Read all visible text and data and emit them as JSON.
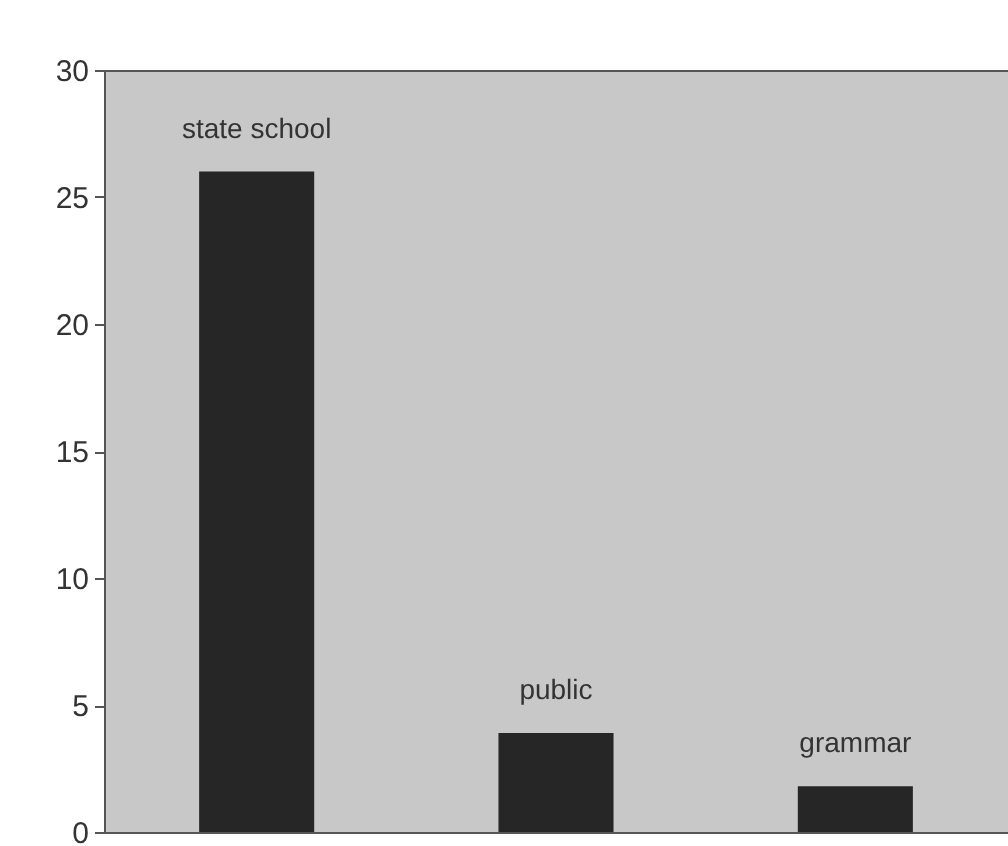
{
  "chart_data": {
    "type": "bar",
    "categories": [
      "state school",
      "public",
      "grammar"
    ],
    "values": [
      26,
      3.9,
      1.8
    ],
    "color": "#262626",
    "ylim": [
      0,
      30
    ],
    "yticks": [
      0,
      5,
      10,
      15,
      20,
      25,
      30
    ],
    "grid": false,
    "tick_labels": "y"
  }
}
